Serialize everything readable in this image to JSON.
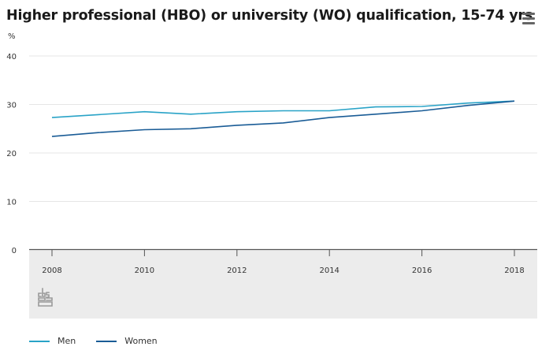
{
  "header": {
    "title": "Higher professional (HBO) or university (WO) qualification, 15-74 yrs",
    "unit": "%"
  },
  "menu": {
    "icon": "hamburger-menu-icon"
  },
  "watermark": {
    "logo": "cbs-logo"
  },
  "colors": {
    "men": "#29a3c7",
    "women": "#1a5c96",
    "grid": "#e6e6e6",
    "axis_band": "#ececec",
    "axis_line": "#555555"
  },
  "chart_data": {
    "type": "line",
    "title": "Higher professional (HBO) or university (WO) qualification, 15-74 yrs",
    "ylabel": "%",
    "xlabel": "",
    "ylim": [
      0,
      40
    ],
    "yticks": [
      0,
      10,
      20,
      30,
      40
    ],
    "xlim": [
      2008,
      2018
    ],
    "xticks": [
      2008,
      2010,
      2012,
      2014,
      2016,
      2018
    ],
    "x": [
      2008,
      2009,
      2010,
      2011,
      2012,
      2013,
      2014,
      2015,
      2016,
      2017,
      2018
    ],
    "series": [
      {
        "name": "Men",
        "color": "#29a3c7",
        "values": [
          27.3,
          27.9,
          28.5,
          28.0,
          28.5,
          28.7,
          28.7,
          29.5,
          29.6,
          30.3,
          30.7
        ]
      },
      {
        "name": "Women",
        "color": "#1a5c96",
        "values": [
          23.4,
          24.2,
          24.8,
          25.0,
          25.7,
          26.2,
          27.3,
          28.0,
          28.7,
          29.8,
          30.7
        ]
      }
    ],
    "grid": true,
    "legend": "bottom-left"
  }
}
